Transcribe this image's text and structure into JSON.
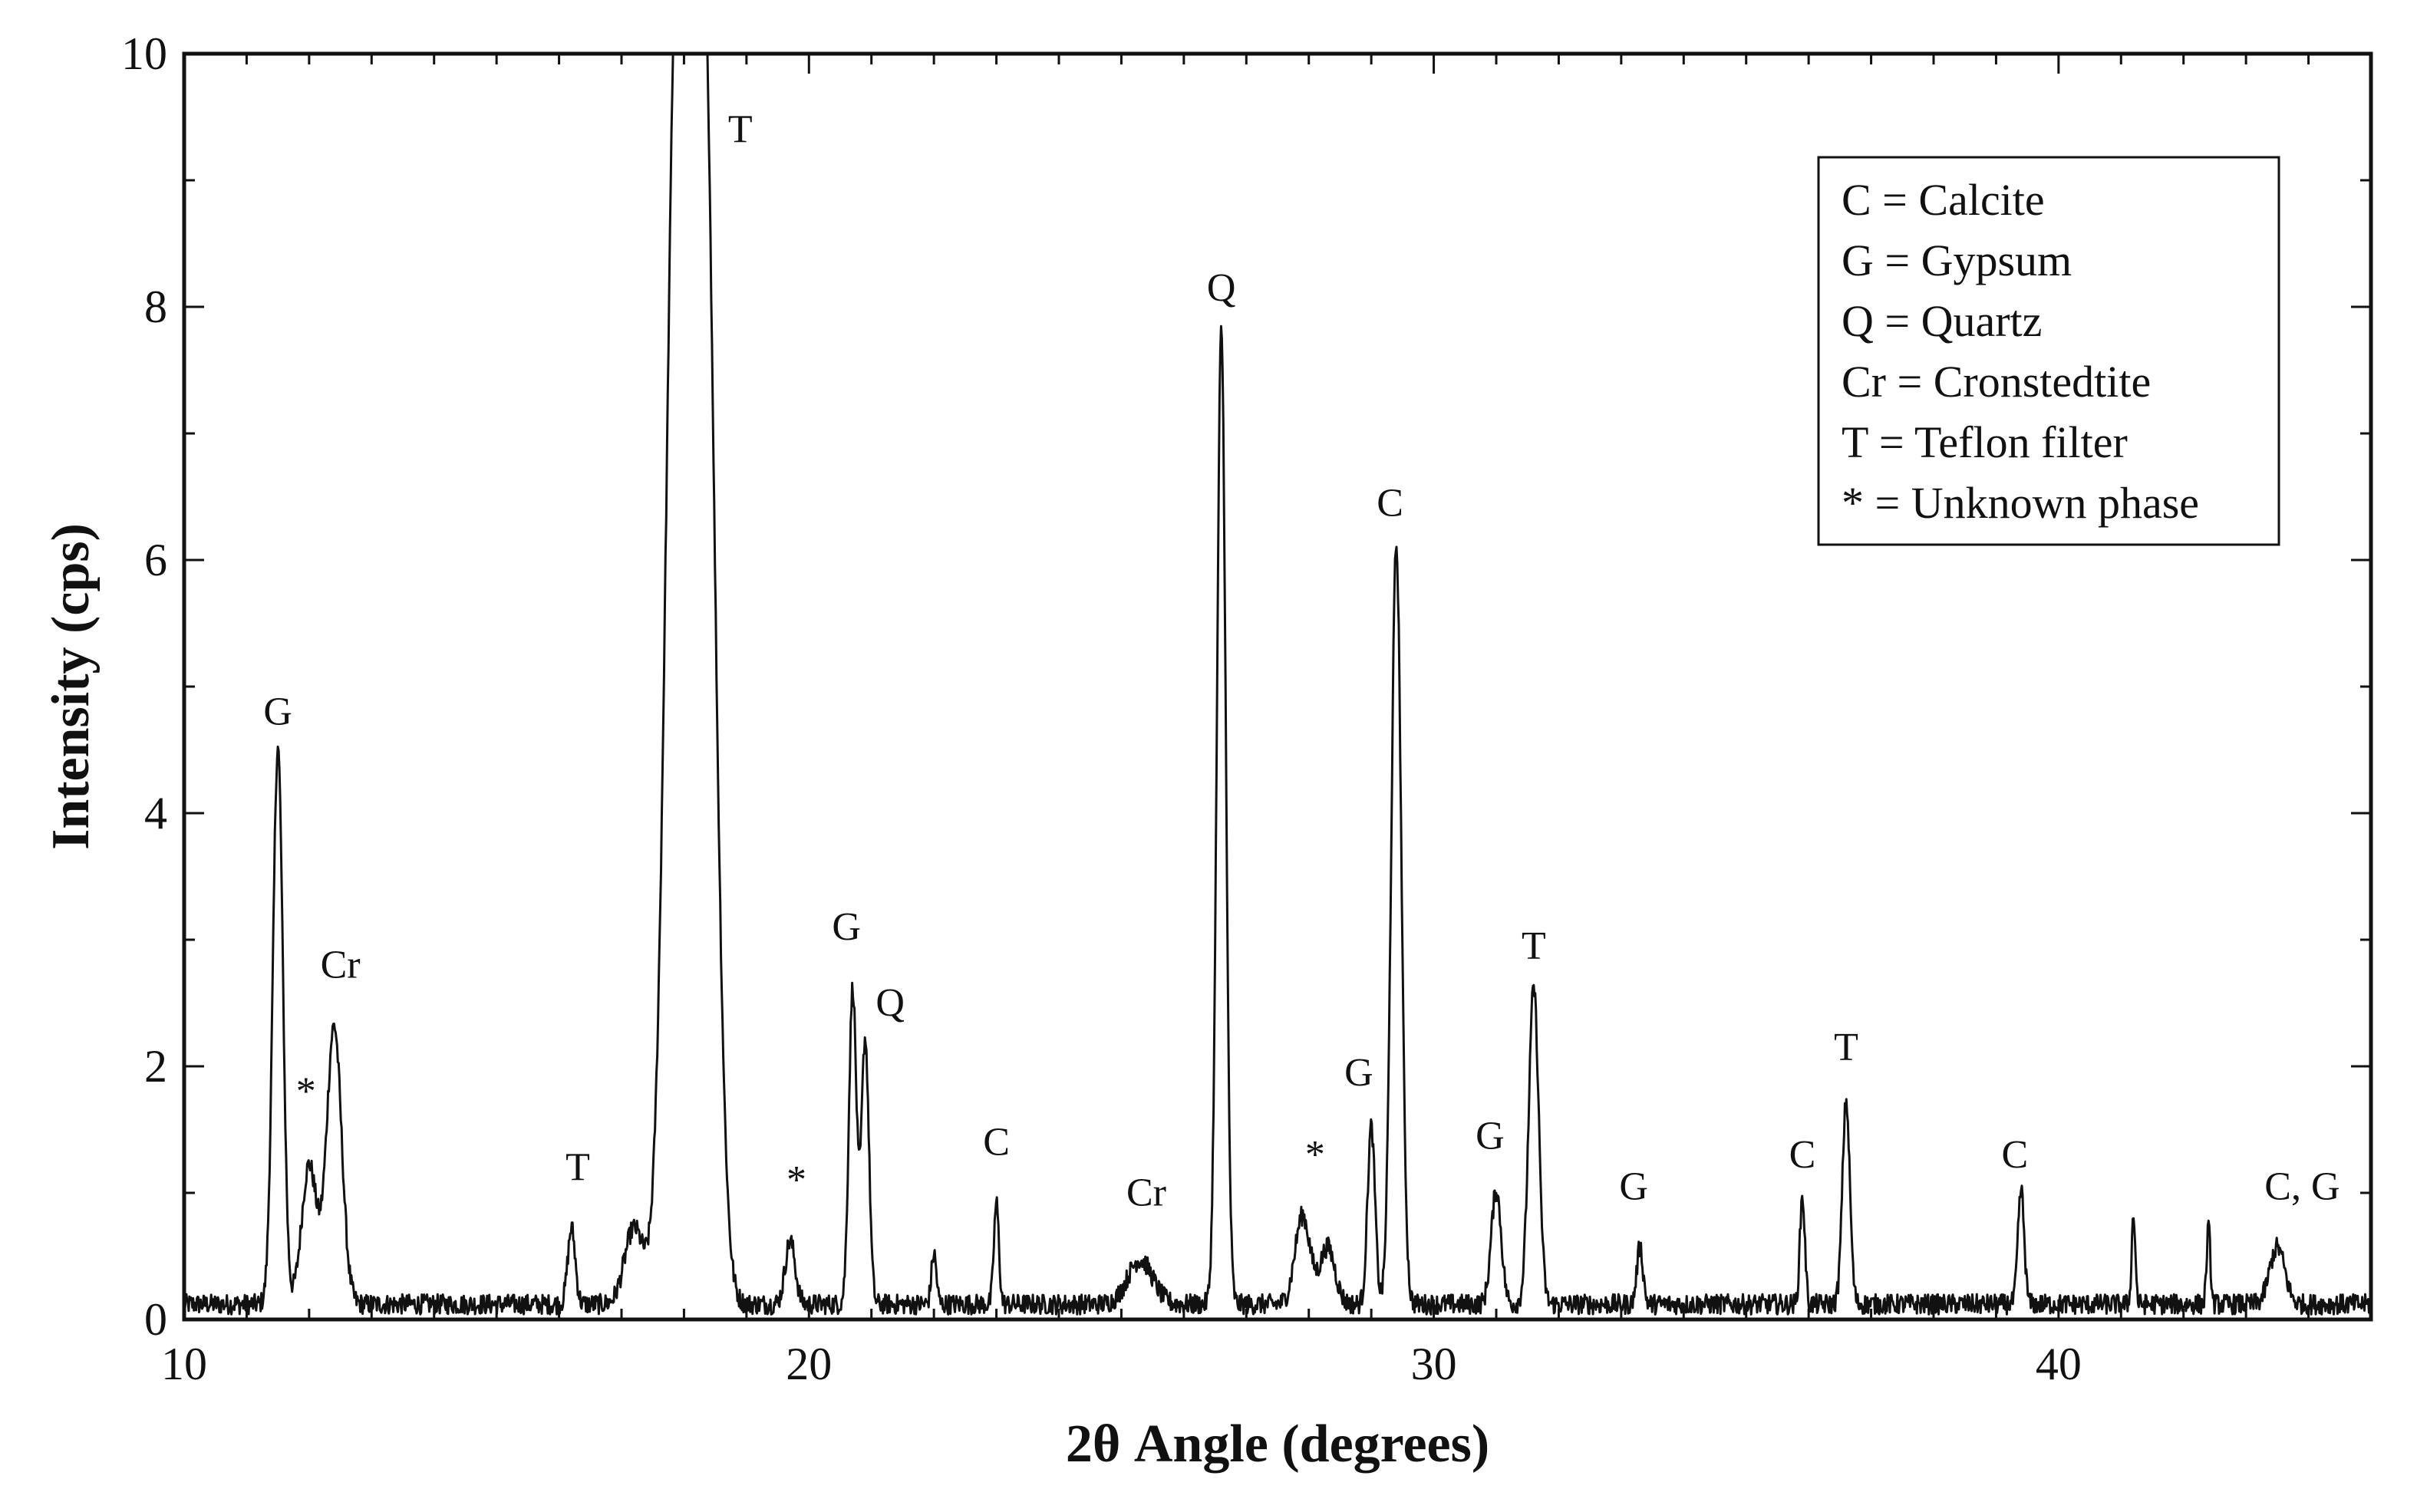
{
  "chart_data": {
    "type": "line",
    "xlabel": "2θ Angle (degrees)",
    "ylabel": "Intensity (cps)",
    "xlim": [
      10,
      45
    ],
    "ylim": [
      0,
      10
    ],
    "x_ticks": [
      10,
      20,
      30,
      40
    ],
    "y_ticks": [
      0,
      2,
      4,
      6,
      8,
      10
    ],
    "grid": false,
    "legend_position": "top-right",
    "legend": [
      "C = Calcite",
      "G = Gypsum",
      "Q = Quartz",
      "Cr = Cronstedtite",
      "T = Teflon filter",
      "* = Unknown phase"
    ],
    "series": [
      {
        "peaks": [
          {
            "x": 11.5,
            "y": 4.4,
            "w": 0.08
          },
          {
            "x": 12.0,
            "y": 1.1,
            "w": 0.12
          },
          {
            "x": 12.4,
            "y": 2.2,
            "w": 0.12
          },
          {
            "x": 16.2,
            "y": 0.6,
            "w": 0.06
          },
          {
            "x": 17.2,
            "y": 0.6,
            "w": 0.15
          },
          {
            "x": 17.9,
            "y": 10.5,
            "w": 0.18
          },
          {
            "x": 18.3,
            "y": 10.5,
            "w": 0.18
          },
          {
            "x": 19.7,
            "y": 0.5,
            "w": 0.08
          },
          {
            "x": 20.7,
            "y": 2.5,
            "w": 0.06
          },
          {
            "x": 20.9,
            "y": 2.1,
            "w": 0.06
          },
          {
            "x": 22.0,
            "y": 0.4,
            "w": 0.04
          },
          {
            "x": 23.0,
            "y": 0.8,
            "w": 0.04
          },
          {
            "x": 25.3,
            "y": 0.35,
            "w": 0.2
          },
          {
            "x": 26.6,
            "y": 7.7,
            "w": 0.07
          },
          {
            "x": 27.9,
            "y": 0.7,
            "w": 0.12
          },
          {
            "x": 28.3,
            "y": 0.45,
            "w": 0.12
          },
          {
            "x": 29.0,
            "y": 1.4,
            "w": 0.06
          },
          {
            "x": 29.4,
            "y": 6.0,
            "w": 0.08
          },
          {
            "x": 31.0,
            "y": 0.9,
            "w": 0.08
          },
          {
            "x": 31.6,
            "y": 2.5,
            "w": 0.08
          },
          {
            "x": 33.3,
            "y": 0.45,
            "w": 0.05
          },
          {
            "x": 35.9,
            "y": 0.85,
            "w": 0.04
          },
          {
            "x": 36.6,
            "y": 1.6,
            "w": 0.06
          },
          {
            "x": 39.4,
            "y": 0.9,
            "w": 0.05
          },
          {
            "x": 41.2,
            "y": 0.7,
            "w": 0.03
          },
          {
            "x": 42.4,
            "y": 0.6,
            "w": 0.03
          },
          {
            "x": 43.5,
            "y": 0.45,
            "w": 0.12
          }
        ],
        "baseline": 0.12,
        "noise": 0.08
      }
    ],
    "annotations": [
      {
        "text": "G",
        "x": 11.5,
        "y": 4.7
      },
      {
        "text": "*",
        "x": 11.95,
        "y": 1.7
      },
      {
        "text": "Cr",
        "x": 12.5,
        "y": 2.7
      },
      {
        "text": "T",
        "x": 16.3,
        "y": 1.1
      },
      {
        "text": "T",
        "x": 18.9,
        "y": 9.3
      },
      {
        "text": "*",
        "x": 19.8,
        "y": 1.0
      },
      {
        "text": "G",
        "x": 20.6,
        "y": 3.0
      },
      {
        "text": "Q",
        "x": 21.3,
        "y": 2.4
      },
      {
        "text": "C",
        "x": 23.0,
        "y": 1.3
      },
      {
        "text": "Cr",
        "x": 25.4,
        "y": 0.9
      },
      {
        "text": "Q",
        "x": 26.6,
        "y": 8.05
      },
      {
        "text": "*",
        "x": 28.1,
        "y": 1.2
      },
      {
        "text": "G",
        "x": 28.8,
        "y": 1.85
      },
      {
        "text": "C",
        "x": 29.3,
        "y": 6.35
      },
      {
        "text": "G",
        "x": 30.9,
        "y": 1.35
      },
      {
        "text": "T",
        "x": 31.6,
        "y": 2.85
      },
      {
        "text": "G",
        "x": 33.2,
        "y": 0.95
      },
      {
        "text": "C",
        "x": 35.9,
        "y": 1.2
      },
      {
        "text": "T",
        "x": 36.6,
        "y": 2.05
      },
      {
        "text": "C",
        "x": 39.3,
        "y": 1.2
      },
      {
        "text": "C, G",
        "x": 43.9,
        "y": 0.95
      }
    ]
  }
}
